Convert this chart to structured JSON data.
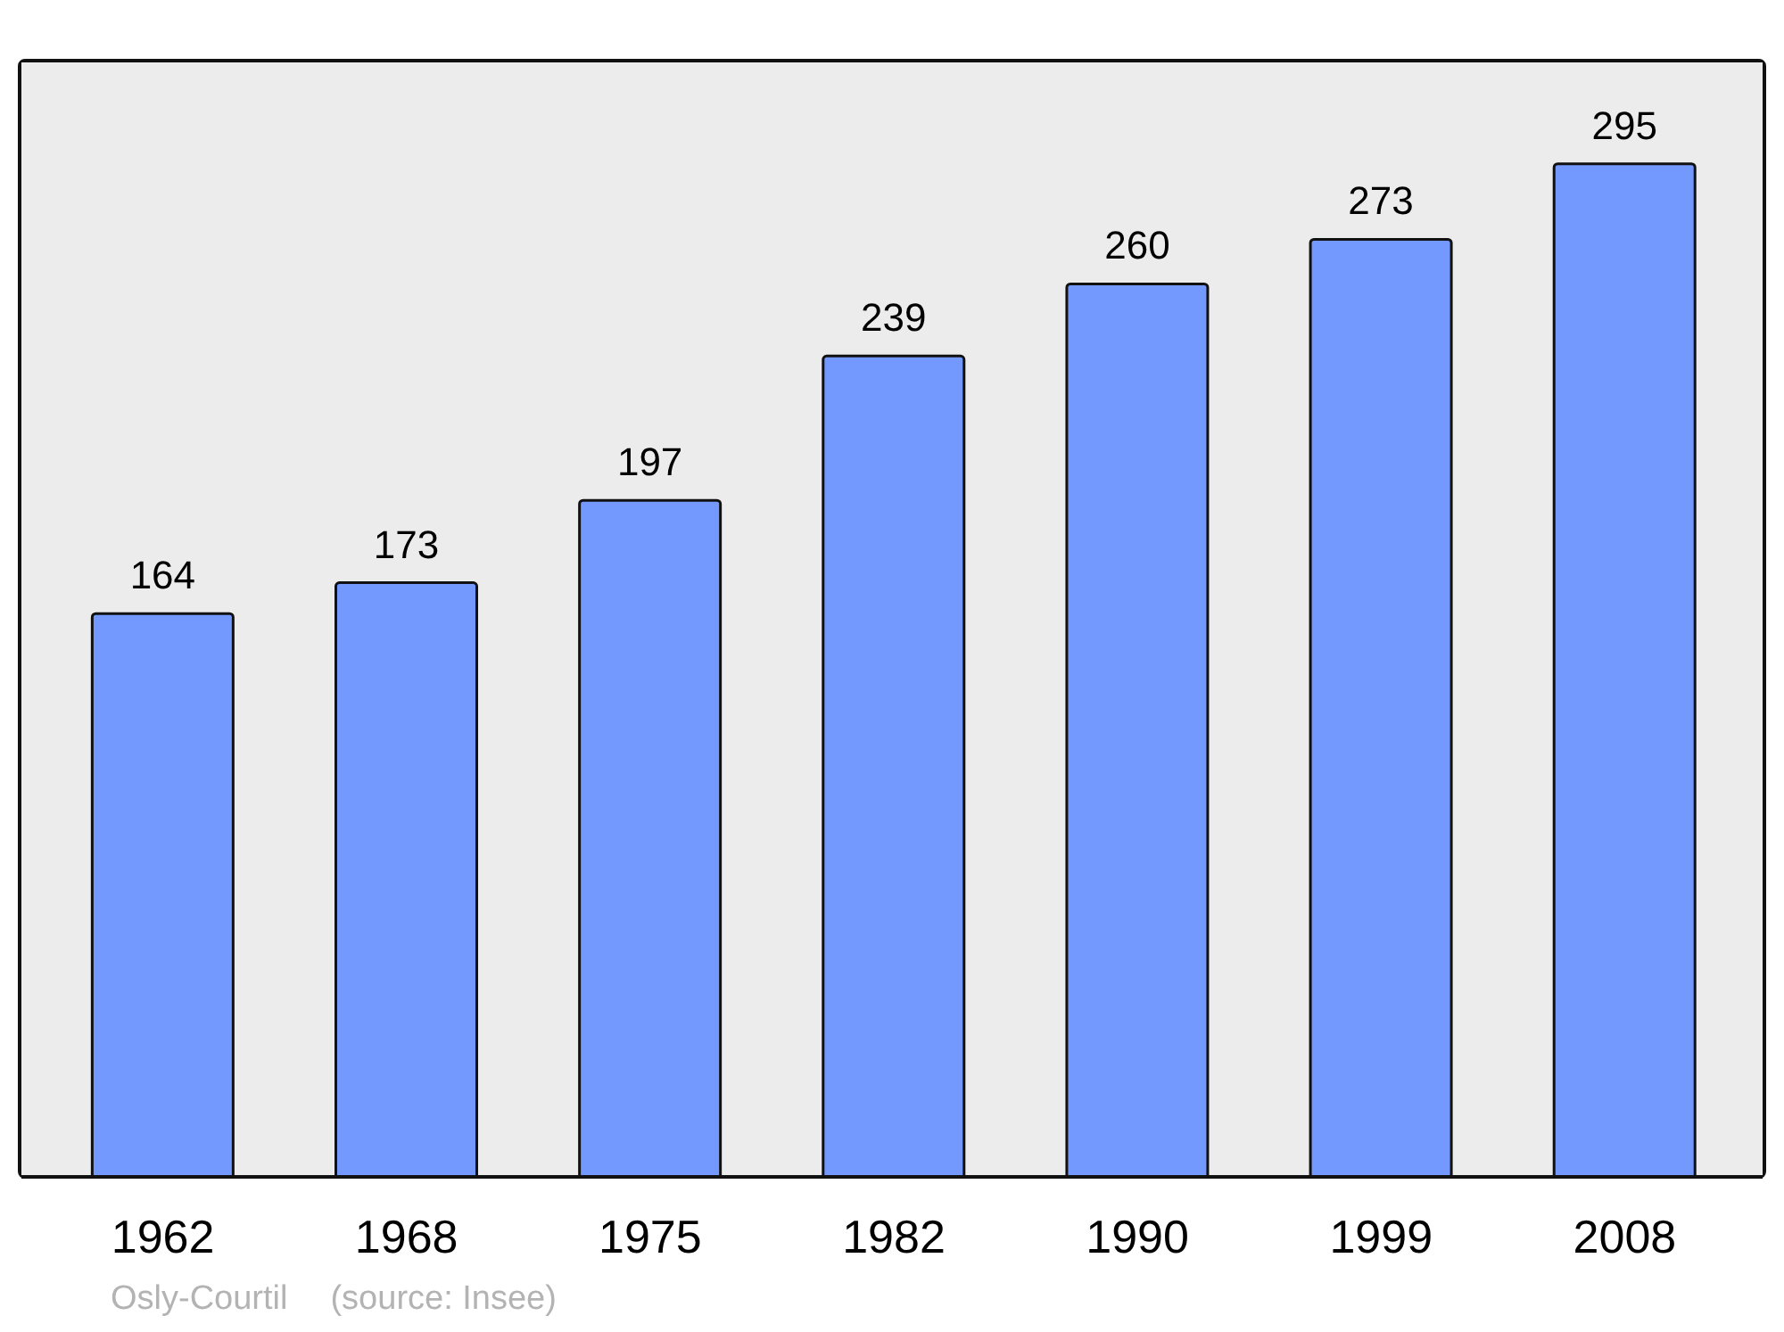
{
  "chart_data": {
    "type": "bar",
    "categories": [
      "1962",
      "1968",
      "1975",
      "1982",
      "1990",
      "1999",
      "2008"
    ],
    "values": [
      164,
      173,
      197,
      239,
      260,
      273,
      295
    ],
    "color": "#7399ff",
    "data_labels": true,
    "grid": false,
    "legend": false,
    "tick_labels": "x",
    "annotations": [
      "Osly-Courtil",
      "(source: Insee)"
    ]
  }
}
